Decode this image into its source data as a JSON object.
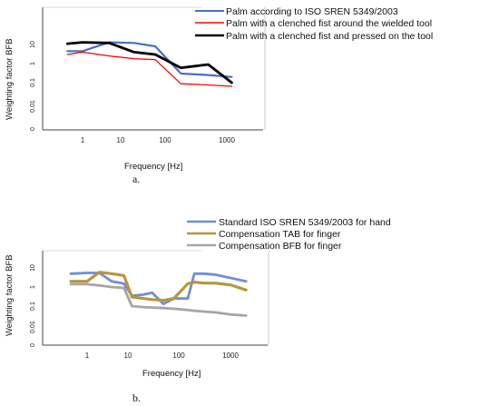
{
  "chart_data": [
    {
      "type": "line",
      "panel_label": "a.",
      "xlabel": "Frequency [Hz]",
      "ylabel": "Weighting factor BFB",
      "x_scale": "log",
      "y_scale": "log",
      "x_ticks": [
        "1",
        "10",
        "100",
        "1000"
      ],
      "y_ticks": [
        "10",
        "1",
        "0.1",
        "0.01",
        "0"
      ],
      "legend_position": "top-right",
      "series": [
        {
          "name": "Palm according to ISO SREN 5349/2003",
          "color": "#4472C4",
          "x": [
            0.4,
            1,
            5,
            20,
            60,
            180,
            500,
            1200
          ],
          "y": [
            4.5,
            4.5,
            13,
            12,
            8,
            0.3,
            0.25,
            0.2
          ]
        },
        {
          "name": "Palm with a clenched fist around the wielded tool",
          "color": "#FF0000",
          "x": [
            0.4,
            1,
            5,
            20,
            60,
            180,
            500,
            1200
          ],
          "y": [
            3,
            4,
            2.5,
            1.8,
            1.6,
            0.09,
            0.08,
            0.07
          ]
        },
        {
          "name": "Palm with a clenched fist and pressed on the tool",
          "color": "#000000",
          "x": [
            0.4,
            1,
            5,
            20,
            60,
            180,
            500,
            1200
          ],
          "y": [
            11,
            13,
            12,
            4,
            3,
            0.6,
            0.9,
            0.1
          ]
        }
      ]
    },
    {
      "type": "line",
      "panel_label": "b.",
      "xlabel": "Frequency [Hz]",
      "ylabel": "Weighting factor BFB",
      "x_scale": "log",
      "y_scale": "log",
      "x_ticks": [
        "1",
        "10",
        "100",
        "1000"
      ],
      "y_ticks": [
        "10",
        "1",
        "0.1",
        "0.01",
        "0"
      ],
      "legend_position": "top-right",
      "series": [
        {
          "name": "Standard ISO SREN 5349/2003 for hand",
          "color": "#6F8FD8",
          "x": [
            0.4,
            1,
            2,
            4,
            8,
            12,
            20,
            30,
            50,
            80,
            150,
            200,
            300,
            500,
            1000,
            2000
          ],
          "y": [
            5,
            5.5,
            5.5,
            2,
            1.5,
            0.35,
            0.4,
            0.5,
            0.13,
            0.25,
            0.25,
            5,
            5,
            4.5,
            3,
            2
          ]
        },
        {
          "name": "Compensation TAB for finger",
          "color": "#B8963C",
          "x": [
            0.4,
            1,
            2,
            4,
            8,
            12,
            20,
            30,
            50,
            80,
            150,
            200,
            300,
            500,
            1000,
            2000
          ],
          "y": [
            2,
            2,
            6,
            5,
            4,
            0.3,
            0.25,
            0.22,
            0.2,
            0.25,
            1.5,
            1.8,
            1.6,
            1.6,
            1.3,
            0.7
          ]
        },
        {
          "name": "Compensation BFB for finger",
          "color": "#A6A6A6",
          "x": [
            0.4,
            1,
            2,
            4,
            8,
            12,
            20,
            30,
            50,
            80,
            150,
            200,
            300,
            500,
            1000,
            2000
          ],
          "y": [
            1.4,
            1.4,
            1.2,
            1,
            0.9,
            0.1,
            0.09,
            0.085,
            0.08,
            0.075,
            0.065,
            0.06,
            0.055,
            0.05,
            0.04,
            0.035
          ]
        }
      ]
    }
  ]
}
